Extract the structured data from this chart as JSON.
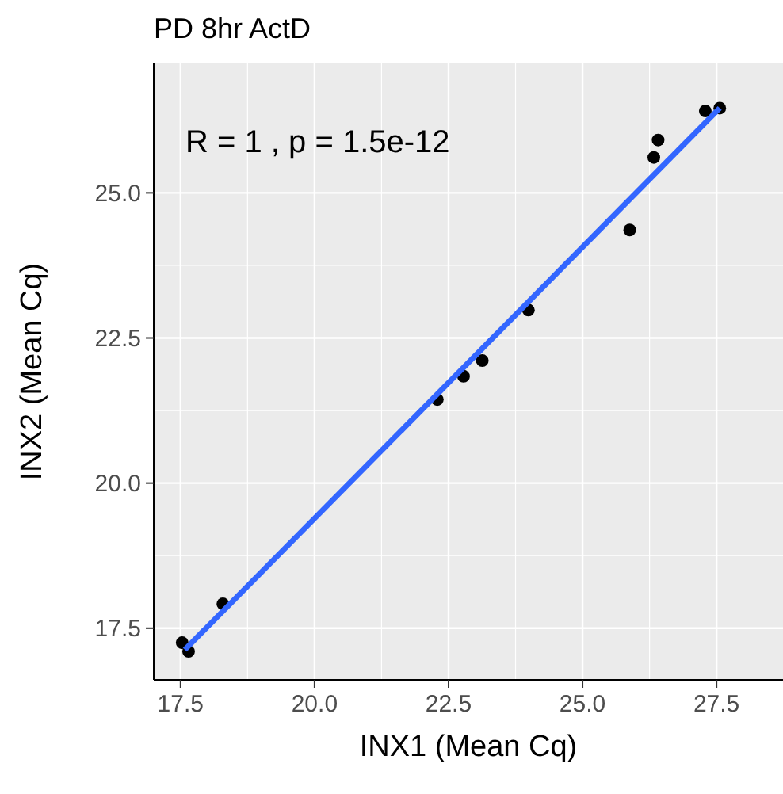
{
  "chart_data": {
    "type": "scatter",
    "title": "PD 8hr ActD",
    "xlabel": "INX1 (Mean Cq)",
    "ylabel": "INX2 (Mean Cq)",
    "annotations": [
      "R = 1 , p = 1.5e-12"
    ],
    "series": [
      {
        "color": "#000000",
        "marker": "circle",
        "x": [
          17.53,
          17.65,
          18.29,
          22.29,
          22.78,
          23.13,
          23.99,
          25.88,
          26.33,
          26.41,
          27.29,
          27.56
        ],
        "values": [
          17.25,
          17.1,
          17.92,
          21.44,
          21.84,
          22.11,
          22.98,
          24.36,
          25.61,
          25.91,
          26.41,
          26.46
        ]
      },
      {
        "type": "line",
        "color": "#3366ff",
        "x": [
          17.58,
          27.56
        ],
        "values": [
          17.13,
          26.46
        ]
      }
    ],
    "xlim": [
      17.0,
      28.74
    ],
    "ylim": [
      16.61,
      27.23
    ],
    "xticks": [
      {
        "value": 17.5,
        "label": "17.5"
      },
      {
        "value": 20,
        "label": "20.0"
      },
      {
        "value": 22.5,
        "label": "22.5"
      },
      {
        "value": 25,
        "label": "25.0"
      },
      {
        "value": 27.5,
        "label": "27.5"
      }
    ],
    "yticks": [
      {
        "value": 17.5,
        "label": "17.5"
      },
      {
        "value": 20,
        "label": "20.0"
      },
      {
        "value": 22.5,
        "label": "22.5"
      },
      {
        "value": 25,
        "label": "25.0"
      }
    ],
    "grid": true
  }
}
